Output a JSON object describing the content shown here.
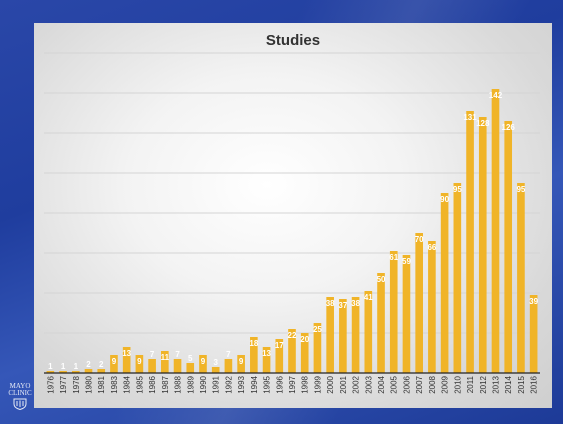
{
  "logo": {
    "line1": "MAYO",
    "line2": "CLINIC"
  },
  "chart_data": {
    "type": "bar",
    "title": "Studies",
    "xlabel": "",
    "ylabel": "",
    "ylim": [
      0,
      160
    ],
    "grid": true,
    "bar_color": "#f0b428",
    "categories": [
      "1976",
      "1977",
      "1978",
      "1980",
      "1981",
      "1983",
      "1984",
      "1985",
      "1986",
      "1987",
      "1988",
      "1989",
      "1990",
      "1991",
      "1992",
      "1993",
      "1994",
      "1995",
      "1996",
      "1997",
      "1998",
      "1999",
      "2000",
      "2001",
      "2002",
      "2003",
      "2004",
      "2005",
      "2006",
      "2007",
      "2008",
      "2009",
      "2010",
      "2011",
      "2012",
      "2013",
      "2014",
      "2015",
      "2016"
    ],
    "values": [
      1,
      1,
      1,
      2,
      2,
      9,
      13,
      9,
      7,
      11,
      7,
      5,
      9,
      3,
      7,
      9,
      18,
      13,
      17,
      22,
      20,
      25,
      38,
      37,
      38,
      41,
      50,
      61,
      59,
      70,
      66,
      90,
      95,
      131,
      128,
      142,
      126,
      95,
      39
    ]
  }
}
